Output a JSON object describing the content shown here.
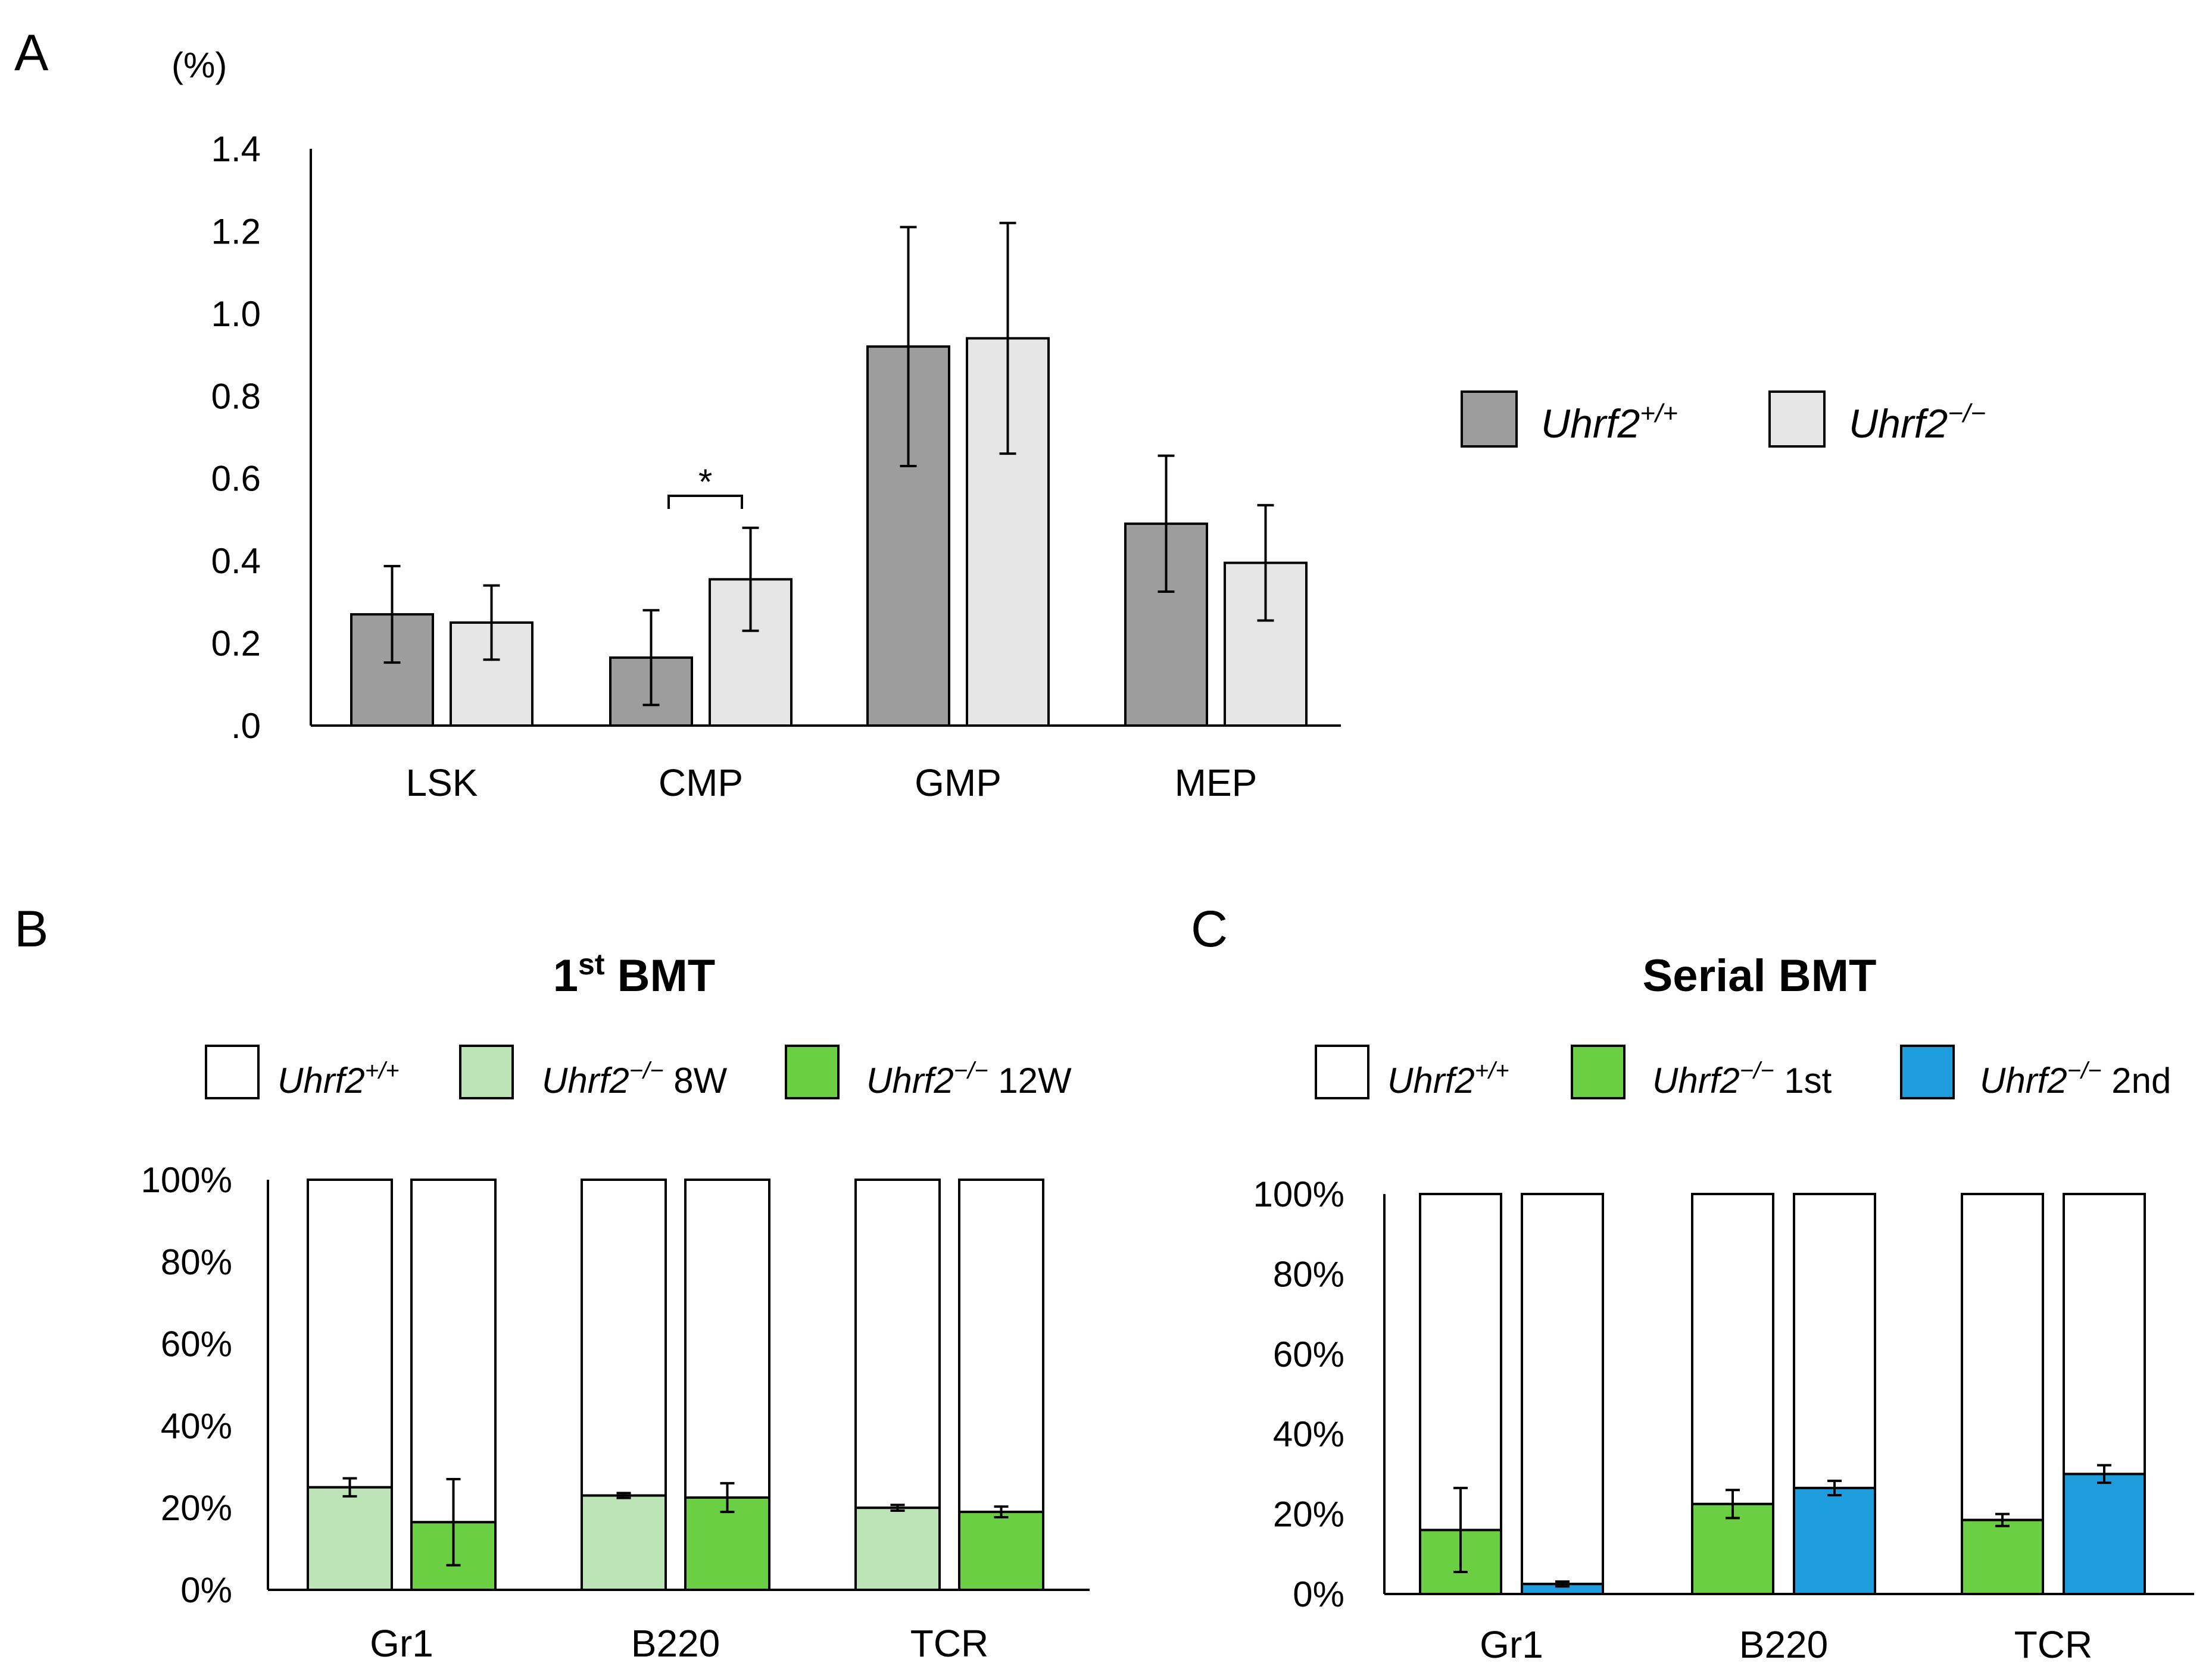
{
  "colors": {
    "wt_dark_gray": "#9d9d9d",
    "ko_light_gray": "#e6e6e6",
    "white": "#ffffff",
    "light_green": "#bde4b6",
    "green": "#6acf43",
    "blue": "#1d9ddb",
    "stroke": "#000000"
  },
  "chart_data": [
    {
      "panel": "A",
      "type": "bar",
      "title": "",
      "ylabel": "(%)",
      "xlabel": "",
      "ylim": [
        0,
        1.4
      ],
      "yticks": [
        ".0",
        "0.2",
        "0.4",
        "0.6",
        "0.8",
        "1.0",
        "1.2",
        "1.4"
      ],
      "categories": [
        "LSK",
        "CMP",
        "GMP",
        "MEP"
      ],
      "series": [
        {
          "name": "Uhrf2",
          "sup": "+/+",
          "color": "#9d9d9d",
          "values": [
            0.27,
            0.165,
            0.92,
            0.49
          ],
          "errors": [
            0.117,
            0.115,
            0.29,
            0.165
          ]
        },
        {
          "name": "Uhrf2",
          "sup": "−/−",
          "color": "#e6e6e6",
          "values": [
            0.25,
            0.355,
            0.94,
            0.395
          ],
          "errors": [
            0.09,
            0.125,
            0.28,
            0.14
          ]
        }
      ],
      "annotation": {
        "text": "*",
        "between_category": "CMP"
      },
      "legend_position": "right"
    },
    {
      "panel": "B",
      "type": "bar",
      "stacked": true,
      "title": "1",
      "title_sup": "st",
      "title_rest": " BMT",
      "ylim": [
        0,
        100
      ],
      "yticks": [
        "0%",
        "20%",
        "40%",
        "60%",
        "80%",
        "100%"
      ],
      "categories": [
        "Gr1",
        "B220",
        "TCR"
      ],
      "legend": [
        {
          "name": "Uhrf2",
          "sup": "+/+",
          "suffix": "",
          "color": "#ffffff"
        },
        {
          "name": "Uhrf2",
          "sup": "−/−",
          "suffix": " 8W",
          "color": "#bde4b6"
        },
        {
          "name": "Uhrf2",
          "sup": "−/−",
          "suffix": " 12W",
          "color": "#6acf43"
        }
      ],
      "series": [
        {
          "label": "Uhrf2−/− 8W",
          "color": "#bde4b6",
          "values": [
            25,
            23,
            20
          ],
          "errors": [
            2.2,
            0.6,
            0.7
          ]
        },
        {
          "label": "Uhrf2−/− 12W",
          "color": "#6acf43",
          "values": [
            16.5,
            22.5,
            19
          ],
          "errors": [
            10.5,
            3.5,
            1.3
          ]
        }
      ],
      "remainder_label": "Uhrf2+/+",
      "remainder_color": "#ffffff",
      "legend_position": "top"
    },
    {
      "panel": "C",
      "type": "bar",
      "stacked": true,
      "title": "Serial BMT",
      "ylim": [
        0,
        100
      ],
      "yticks": [
        "0%",
        "20%",
        "40%",
        "60%",
        "80%",
        "100%"
      ],
      "categories": [
        "Gr1",
        "B220",
        "TCR"
      ],
      "legend": [
        {
          "name": "Uhrf2",
          "sup": "+/+",
          "suffix": "",
          "color": "#ffffff"
        },
        {
          "name": "Uhrf2",
          "sup": "−/−",
          "suffix": " 1st",
          "color": "#6acf43"
        },
        {
          "name": "Uhrf2",
          "sup": "−/−",
          "suffix": " 2nd",
          "color": "#1d9ddb"
        }
      ],
      "series": [
        {
          "label": "Uhrf2−/− 1st",
          "color": "#6acf43",
          "values": [
            16,
            22.5,
            18.5
          ],
          "errors": [
            10.5,
            3.5,
            1.5
          ]
        },
        {
          "label": "Uhrf2−/− 2nd",
          "color": "#1d9ddb",
          "values": [
            2.5,
            26.5,
            30
          ],
          "errors": [
            0.6,
            1.8,
            2.2
          ]
        }
      ],
      "remainder_label": "Uhrf2+/+",
      "remainder_color": "#ffffff",
      "legend_position": "top"
    }
  ]
}
